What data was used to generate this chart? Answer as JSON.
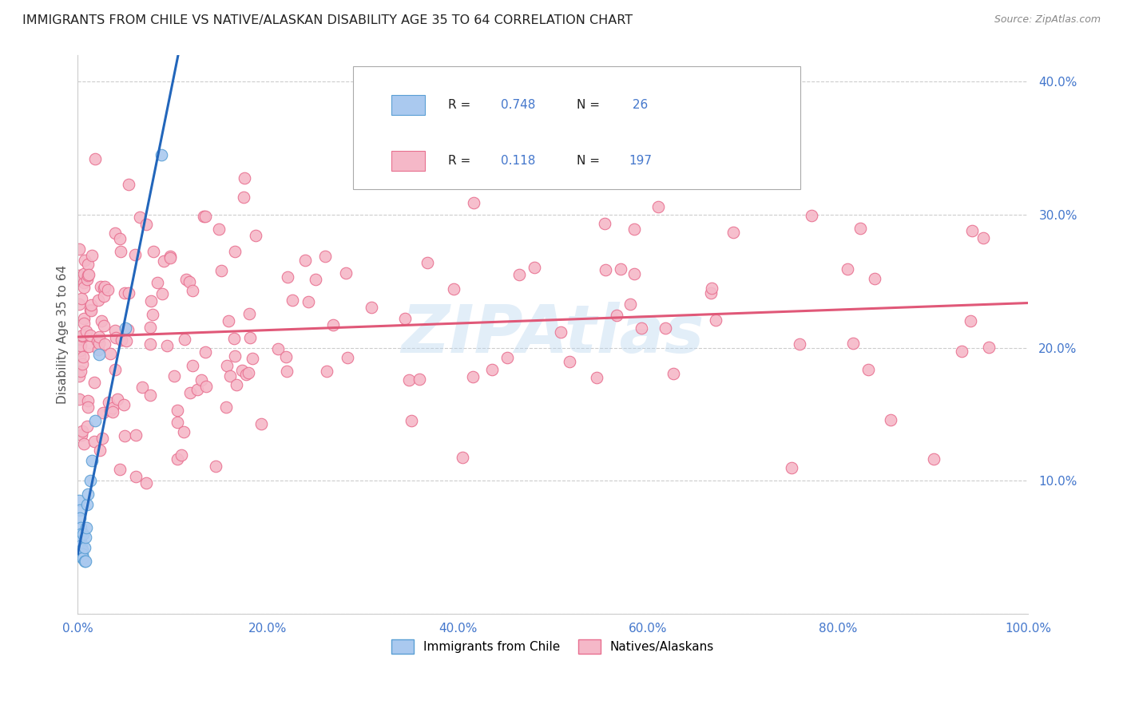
{
  "title": "IMMIGRANTS FROM CHILE VS NATIVE/ALASKAN DISABILITY AGE 35 TO 64 CORRELATION CHART",
  "source": "Source: ZipAtlas.com",
  "ylabel": "Disability Age 35 to 64",
  "x_min": 0.0,
  "x_max": 1.0,
  "y_min": 0.0,
  "y_max": 0.42,
  "x_ticks": [
    0.0,
    0.2,
    0.4,
    0.6,
    0.8,
    1.0
  ],
  "x_tick_labels": [
    "0.0%",
    "20.0%",
    "40.0%",
    "60.0%",
    "80.0%",
    "100.0%"
  ],
  "y_ticks": [
    0.0,
    0.1,
    0.2,
    0.3,
    0.4
  ],
  "y_tick_labels": [
    "",
    "10.0%",
    "20.0%",
    "30.0%",
    "40.0%"
  ],
  "blue_R": 0.748,
  "blue_N": 26,
  "pink_R": 0.118,
  "pink_N": 197,
  "blue_fill": "#aac9ef",
  "pink_fill": "#f5b8c8",
  "blue_edge": "#5a9fd4",
  "pink_edge": "#e87090",
  "blue_line": "#2266bb",
  "pink_line": "#e05878",
  "legend_label_blue": "Immigrants from Chile",
  "legend_label_pink": "Natives/Alaskans",
  "watermark": "ZIPAtlas"
}
